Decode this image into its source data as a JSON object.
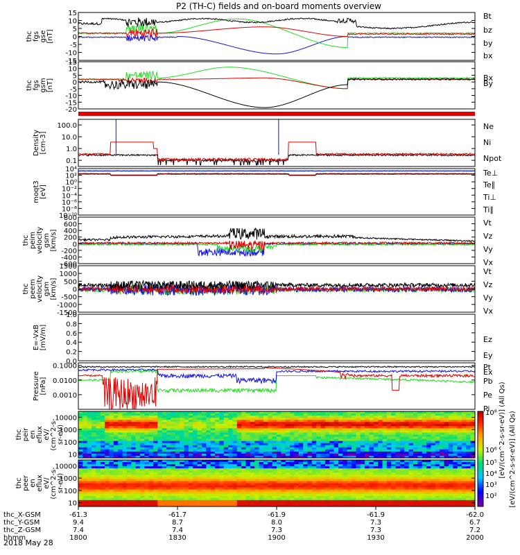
{
  "title": "P2 (TH-C) fields and on-board moments overview",
  "date_label": "2018 May 28",
  "colors": {
    "black": "#000000",
    "red": "#e00000",
    "green": "#22dd22",
    "blue": "#1010e0"
  },
  "chart_data": [
    {
      "type": "line",
      "name": "fgs_gse",
      "ylabel_lines": [
        "thc",
        "fgs",
        "gse",
        "[nT]"
      ],
      "ylim": [
        -15,
        15
      ],
      "yticks": [
        -15,
        -10,
        -5,
        0,
        5,
        10,
        15
      ],
      "legend": [
        "Bt",
        "bz",
        "by",
        "bx"
      ],
      "legend_colors": [
        "black",
        "red",
        "green",
        "blue"
      ]
    },
    {
      "type": "line",
      "name": "fgs_gsm",
      "ylabel_lines": [
        "thc",
        "fgs",
        "gsm",
        "[nT]"
      ],
      "ylim": [
        -20,
        15
      ],
      "yticks": [
        -20,
        -15,
        -10,
        -5,
        0,
        5,
        10,
        15
      ],
      "legend": [
        "Bx",
        "By",
        "Bz"
      ],
      "legend_colors": [
        "black",
        "green",
        "red"
      ]
    },
    {
      "type": "line",
      "name": "density",
      "ylabel_lines": [
        "Density",
        "[cm-3]"
      ],
      "scale": "log",
      "ylim": [
        0.03,
        300
      ],
      "yticks": [
        "0.1",
        "1.0",
        "10.0",
        "100.0"
      ],
      "legend": [
        "Ne",
        "Ni",
        "Npot"
      ],
      "legend_colors": [
        "red",
        "black",
        "blue"
      ]
    },
    {
      "type": "line",
      "name": "temperature",
      "ylabel_lines": [
        "moqt3",
        "[eV]"
      ],
      "scale": "log",
      "ylim": [
        1e-10,
        10000.0
      ],
      "yticks": [
        "10⁻¹⁰",
        "10⁻⁸",
        "10⁻⁶",
        "10⁻⁴",
        "10⁻²",
        "10⁰",
        "10²",
        "10⁴"
      ],
      "legend": [
        "Te⊥",
        "Te∥",
        "Ti⊥",
        "Ti∥"
      ],
      "legend_colors": [
        "red",
        "black",
        "blue",
        "green"
      ]
    },
    {
      "type": "line",
      "name": "peim_velocity",
      "ylabel_lines": [
        "thc",
        "peim",
        "velocity",
        "gsm",
        "[km/s]"
      ],
      "ylim": [
        -600,
        800
      ],
      "yticks": [
        -600,
        -400,
        -200,
        0,
        200,
        400,
        600,
        800
      ],
      "legend": [
        "Vt",
        "Vz",
        "Vy",
        "Vx"
      ],
      "legend_colors": [
        "black",
        "red",
        "green",
        "blue"
      ]
    },
    {
      "type": "line",
      "name": "peem_velocity",
      "ylabel_lines": [
        "thc",
        "peem",
        "velocity",
        "gsm",
        "[km/s]"
      ],
      "ylim": [
        -1500,
        1500
      ],
      "yticks": [
        -1500,
        -1000,
        -500,
        0,
        500,
        1000,
        1500
      ],
      "legend": [
        "Vt",
        "Vz",
        "Vy",
        "Vx"
      ],
      "legend_colors": [
        "black",
        "red",
        "green",
        "blue"
      ]
    },
    {
      "type": "line",
      "name": "efield",
      "ylabel_lines": [
        "E=-VxB",
        "[mV/m]"
      ],
      "ylim": [
        0,
        1
      ],
      "yticks": [
        0.0,
        0.2,
        0.4,
        0.6,
        0.8,
        1.0
      ],
      "legend": [
        "Ez",
        "Ey",
        "Ex"
      ],
      "legend_colors": [
        "red",
        "green",
        "blue"
      ]
    },
    {
      "type": "line",
      "name": "pressure",
      "ylabel_lines": [
        "Pressure",
        "[nPa]"
      ],
      "scale": "log",
      "ylim": [
        0.0001,
        0.15
      ],
      "yticks": [
        "0.0010",
        "0.0100",
        "0.1000"
      ],
      "legend": [
        "Pt",
        "Pb",
        "Pe",
        "Pi"
      ],
      "legend_colors": [
        "black",
        "red",
        "green",
        "blue"
      ]
    },
    {
      "type": "heatmap",
      "name": "peir_eflux",
      "ylabel_lines": [
        "thc",
        "peir",
        "en",
        "eflux",
        "eV/",
        "(cm^2-s-",
        "sr-eV)"
      ],
      "scale": "log",
      "ylim": [
        5,
        30000
      ],
      "yticks": [
        "10",
        "100",
        "1000",
        "10000"
      ]
    },
    {
      "type": "heatmap",
      "name": "peer_eflux",
      "ylabel_lines": [
        "thc",
        "peer",
        "en",
        "eflux",
        "eV/",
        "(cm^2-s-",
        "sr-eV)"
      ],
      "scale": "log",
      "ylim": [
        5,
        30000
      ],
      "yticks": [
        "10",
        "100",
        "1000",
        "10000"
      ]
    }
  ],
  "colorbar": {
    "ticks": [
      "10²",
      "10³",
      "10⁴",
      "10⁵",
      "10⁶",
      "10⁸"
    ],
    "label": "[eV/(cm^2-s-sr-eV)] (All Qs)",
    "overlay_text": "[eV/(cm^2-s-sr-eV)] (All Qs)"
  },
  "xaxis": {
    "row_labels": [
      "thc_X-GSM",
      "thc_Y-GSM",
      "thc_Z-GSM",
      "hhmm"
    ],
    "columns": [
      {
        "x": "-61.3",
        "y": "9.4",
        "z": "7.4",
        "t": "1800"
      },
      {
        "x": "-61.7",
        "y": "8.7",
        "z": "7.4",
        "t": "1830"
      },
      {
        "x": "-61.9",
        "y": "8.0",
        "z": "7.3",
        "t": "1900"
      },
      {
        "x": "-61.9",
        "y": "7.3",
        "z": "7.3",
        "t": "1930"
      },
      {
        "x": "-62.0",
        "y": "6.7",
        "z": "7.2",
        "t": "2000"
      }
    ]
  }
}
